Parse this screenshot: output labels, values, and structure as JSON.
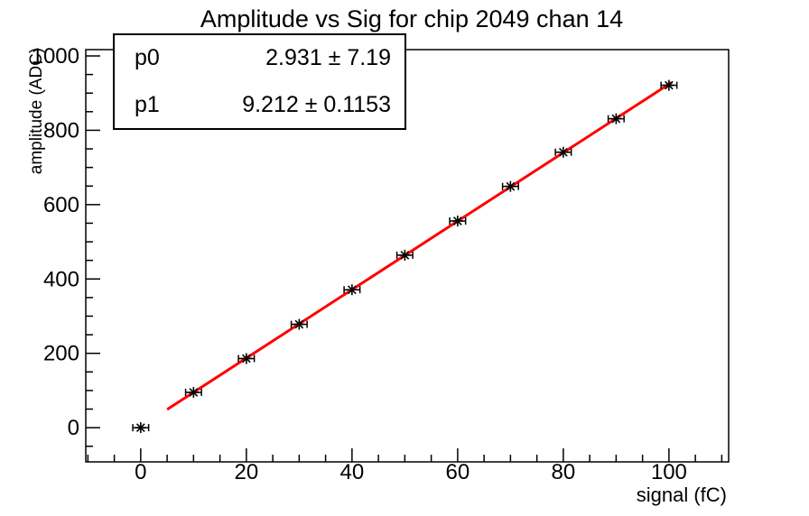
{
  "title": "Amplitude vs Sig for chip 2049 chan 14",
  "stats": {
    "rows": [
      {
        "name": "p0",
        "value": "2.931 ±  7.19"
      },
      {
        "name": "p1",
        "value": "9.212 ± 0.1153"
      }
    ]
  },
  "chart_data": {
    "type": "scatter",
    "title": "Amplitude vs Sig for chip 2049 chan 14",
    "xlabel": "signal (fC)",
    "ylabel": "amplitude (ADC)",
    "x": [
      0,
      10,
      20,
      30,
      40,
      50,
      60,
      70,
      80,
      90,
      100
    ],
    "y": [
      0,
      95,
      186,
      278,
      371,
      464,
      556,
      649,
      741,
      831,
      921
    ],
    "xerr": 1.5,
    "marker": "asterisk",
    "marker_color": "#000000",
    "grid": false,
    "legend": "none",
    "xlim": [
      -10.4,
      111.3
    ],
    "ylim": [
      -92,
      1017
    ],
    "x_major_ticks": [
      0,
      20,
      40,
      60,
      80,
      100
    ],
    "x_tick_labels": [
      "0",
      "20",
      "40",
      "60",
      "80",
      "100"
    ],
    "x_minor_step": 5,
    "y_major_ticks": [
      0,
      200,
      400,
      600,
      800,
      1000
    ],
    "y_tick_labels": [
      "0",
      "200",
      "400",
      "600",
      "800",
      "1000"
    ],
    "y_minor_step": 50,
    "fit": {
      "p0": 2.931,
      "p1": 9.212,
      "x_start": 5,
      "x_end": 100.5,
      "color": "#ff0000",
      "width": 3
    }
  },
  "colors": {
    "background": "#ffffff",
    "axis": "#000000",
    "fit_line": "#ff0000",
    "text": "#000000"
  }
}
